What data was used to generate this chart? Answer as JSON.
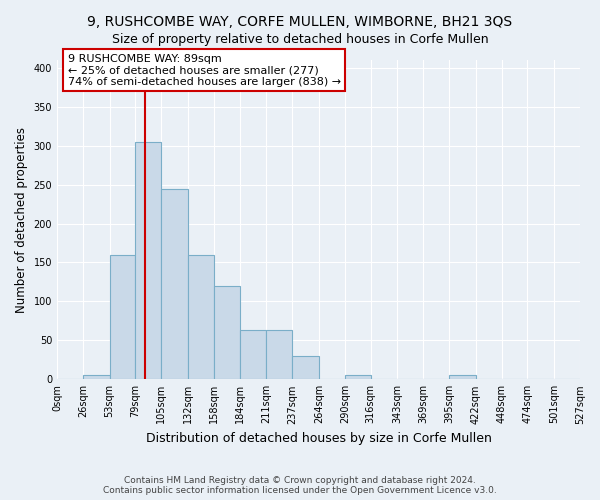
{
  "title": "9, RUSHCOMBE WAY, CORFE MULLEN, WIMBORNE, BH21 3QS",
  "subtitle": "Size of property relative to detached houses in Corfe Mullen",
  "xlabel": "Distribution of detached houses by size in Corfe Mullen",
  "ylabel": "Number of detached properties",
  "bin_edges": [
    0,
    26,
    53,
    79,
    105,
    132,
    158,
    184,
    211,
    237,
    264,
    290,
    316,
    343,
    369,
    395,
    422,
    448,
    474,
    501,
    527
  ],
  "bar_heights": [
    0,
    5,
    160,
    305,
    245,
    160,
    120,
    63,
    63,
    30,
    0,
    5,
    0,
    0,
    0,
    5,
    0,
    0,
    0,
    0
  ],
  "bar_color": "#c9d9e8",
  "bar_edge_color": "#7aaec8",
  "bar_edge_width": 0.8,
  "background_color": "#eaf0f6",
  "property_size": 89,
  "red_line_color": "#cc0000",
  "annotation_text": "9 RUSHCOMBE WAY: 89sqm\n← 25% of detached houses are smaller (277)\n74% of semi-detached houses are larger (838) →",
  "annotation_box_color": "#ffffff",
  "annotation_box_edge_color": "#cc0000",
  "ylim": [
    0,
    410
  ],
  "yticks": [
    0,
    50,
    100,
    150,
    200,
    250,
    300,
    350,
    400
  ],
  "footer_line1": "Contains HM Land Registry data © Crown copyright and database right 2024.",
  "footer_line2": "Contains public sector information licensed under the Open Government Licence v3.0.",
  "title_fontsize": 10,
  "subtitle_fontsize": 9,
  "tick_fontsize": 7,
  "ylabel_fontsize": 8.5,
  "xlabel_fontsize": 9,
  "footer_fontsize": 6.5
}
